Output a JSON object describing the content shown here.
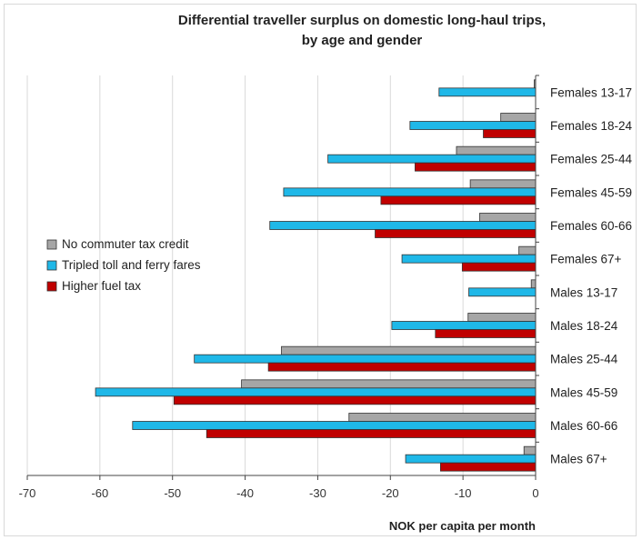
{
  "chart_data": {
    "type": "bar",
    "orientation": "horizontal",
    "title": [
      "Differential traveller surplus on domestic long-haul trips,",
      "by age and gender"
    ],
    "xlabel": "NOK per capita per month",
    "ylabel": "",
    "xlim": [
      -70,
      0
    ],
    "xticks": [
      -70,
      -60,
      -50,
      -40,
      -30,
      -20,
      -10,
      0
    ],
    "grid": "vertical",
    "legend_position": "left-middle",
    "categories": [
      "Females 13-17",
      "Females 18-24",
      "Females 25-44",
      "Females 45-59",
      "Females 60-66",
      "Females 67+",
      "Males 13-17",
      "Males 18-24",
      "Males 25-44",
      "Males 45-59",
      "Males 60-66",
      "Males 67+"
    ],
    "series": [
      {
        "name": "No commuter tax credit",
        "color": "#a6a6a6",
        "values": [
          -0.2,
          -4.8,
          -10.9,
          -9.0,
          -7.7,
          -2.3,
          -0.6,
          -9.3,
          -35.0,
          -40.5,
          -25.7,
          -1.6
        ]
      },
      {
        "name": "Tripled toll and ferry fares",
        "color": "#1fb8e8",
        "values": [
          -13.3,
          -17.3,
          -28.6,
          -34.7,
          -36.6,
          -18.4,
          -9.2,
          -19.8,
          -47.0,
          -60.6,
          -55.5,
          -17.9
        ]
      },
      {
        "name": "Higher fuel tax",
        "color": "#c00000",
        "values": [
          0,
          -7.2,
          -16.6,
          -21.3,
          -22.1,
          -10.1,
          0,
          -13.8,
          -36.8,
          -49.8,
          -45.3,
          -13.1
        ]
      }
    ]
  }
}
